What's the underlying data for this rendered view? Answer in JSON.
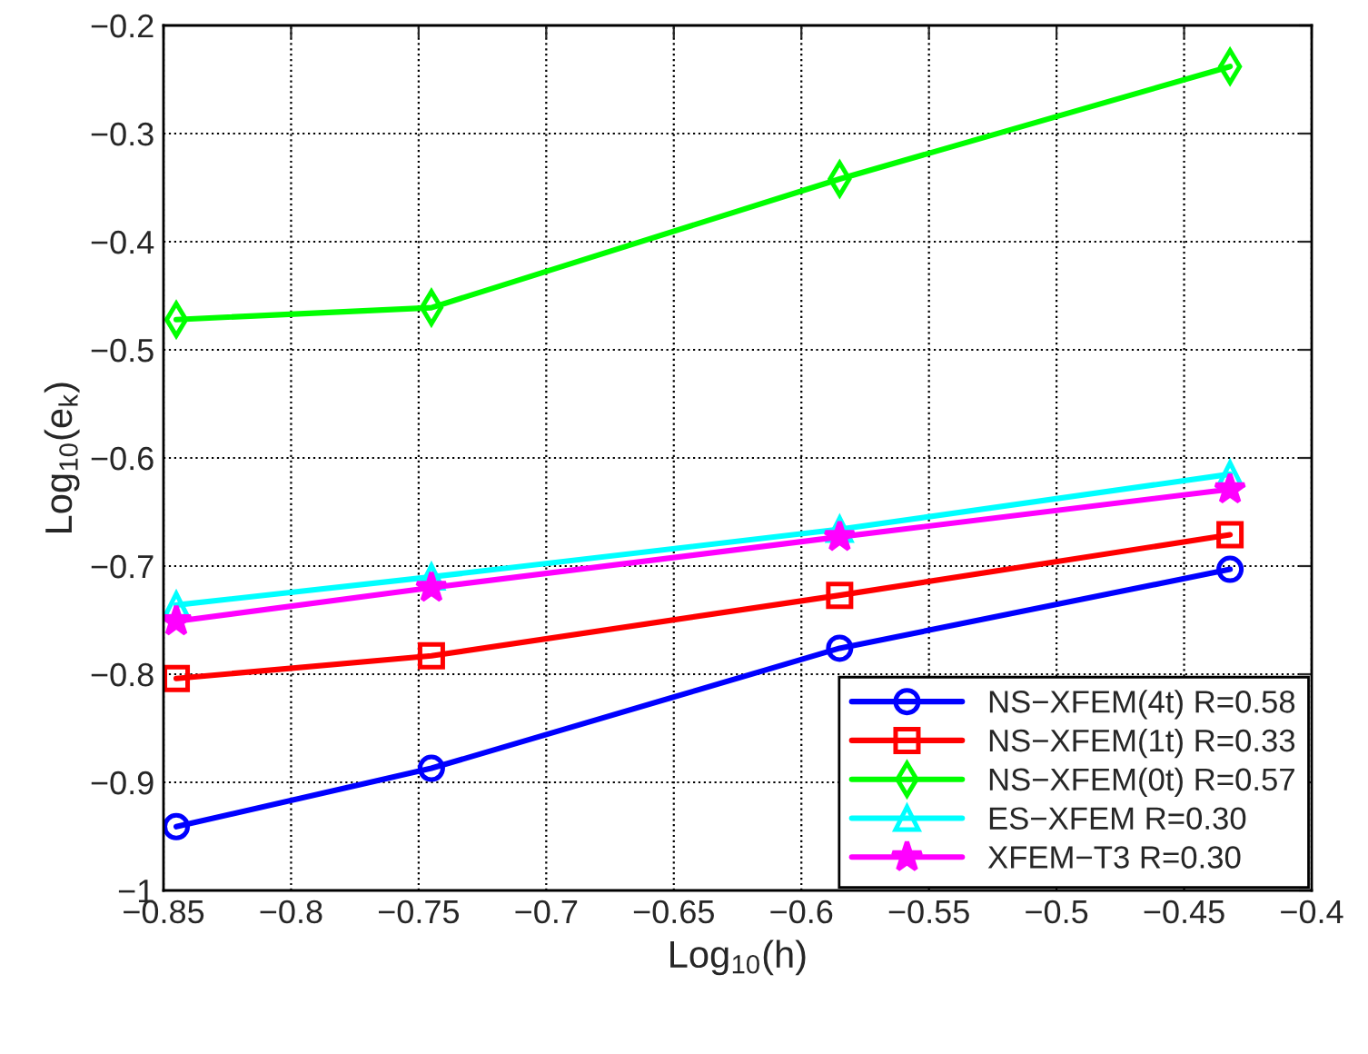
{
  "chart_data": {
    "type": "line",
    "xlabel": "Log$_{10}$(h)",
    "ylabel": "Log$_{10}$(e$_{k}$)",
    "x": [
      -0.845,
      -0.745,
      -0.585,
      -0.432
    ],
    "series": [
      {
        "name": "NS−XFEM(4t) R=0.58",
        "color": "#0000ff",
        "marker": "circle",
        "values": [
          -0.941,
          -0.887,
          -0.776,
          -0.703
        ]
      },
      {
        "name": "NS−XFEM(1t) R=0.33",
        "color": "#ff0000",
        "marker": "square",
        "values": [
          -0.804,
          -0.783,
          -0.727,
          -0.671
        ]
      },
      {
        "name": "NS−XFEM(0t) R=0.57",
        "color": "#00ff00",
        "marker": "diamond",
        "values": [
          -0.472,
          -0.461,
          -0.342,
          -0.238
        ]
      },
      {
        "name": "ES−XFEM R=0.30",
        "color": "#00ffff",
        "marker": "triangle",
        "values": [
          -0.736,
          -0.71,
          -0.666,
          -0.615
        ]
      },
      {
        "name": "XFEM−T3 R=0.30",
        "color": "#ff00ff",
        "marker": "star",
        "values": [
          -0.751,
          -0.72,
          -0.673,
          -0.629
        ]
      }
    ],
    "xlim": [
      -0.85,
      -0.4
    ],
    "xticks": [
      -0.85,
      -0.8,
      -0.75,
      -0.7,
      -0.65,
      -0.6,
      -0.55,
      -0.5,
      -0.45,
      -0.4
    ],
    "ylim": [
      -1,
      -0.2
    ],
    "yticks": [
      -1,
      -0.9,
      -0.8,
      -0.7,
      -0.6,
      -0.5,
      -0.4,
      -0.3,
      -0.2
    ],
    "grid": true,
    "legend": "bottom right",
    "line_style": "solid"
  }
}
